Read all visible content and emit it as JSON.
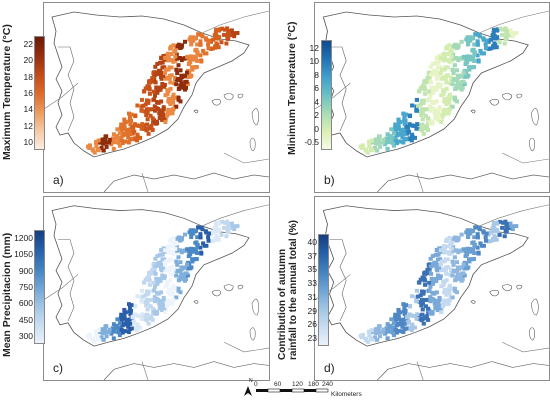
{
  "panels": [
    {
      "letter": "a)",
      "legend_title": [
        "Maximum Temperature (°C)"
      ],
      "ticks": [
        "22",
        "20",
        "18",
        "16",
        "14",
        "12",
        "10"
      ],
      "gradient": [
        "#fbeee3",
        "#f5c9a3",
        "#ec9a5c",
        "#dd6a28",
        "#c24a18",
        "#962d0d",
        "#6b1a06"
      ],
      "point_colors": [
        "#e0722c",
        "#d4601e",
        "#c8531a",
        "#b44414",
        "#ea8a45",
        "#8e2c0c",
        "#e9853e"
      ]
    },
    {
      "letter": "b)",
      "legend_title": [
        "Minimum Temperature (°C)"
      ],
      "ticks": [
        "12",
        "10",
        "8",
        "6",
        "4",
        "2",
        "0",
        "-0.5"
      ],
      "gradient": [
        "#f6fbe4",
        "#d9efb4",
        "#a8dbb6",
        "#6cc0c4",
        "#3f9fcb",
        "#2273b4",
        "#0e4a8c"
      ],
      "point_colors": [
        "#d3ecb0",
        "#a3d9b9",
        "#78c6c2",
        "#4aa7cc",
        "#2b7fbb",
        "#c0e4af",
        "#e6f4c6"
      ]
    },
    {
      "letter": "c)",
      "legend_title": [
        "Mean Precipitacion (mm)"
      ],
      "ticks": [
        "1200",
        "1050",
        "900",
        "750",
        "600",
        "450",
        "300"
      ],
      "gradient": [
        "#eaf2fb",
        "#c8dcf0",
        "#a0c4e4",
        "#6ea4d4",
        "#4282c0",
        "#2660a8",
        "#163e80"
      ],
      "point_colors": [
        "#dbe8f6",
        "#c2d8ef",
        "#a6c7e7",
        "#eef4fb",
        "#7eaed9",
        "#4a88c6",
        "#2a5fa8"
      ]
    },
    {
      "letter": "d)",
      "legend_title": [
        "Contribution of autumn",
        "rainfall to the annual total (%)"
      ],
      "ticks": [
        "40",
        "37",
        "35",
        "33",
        "31",
        "29",
        "26",
        "23"
      ],
      "gradient": [
        "#eaf2fb",
        "#c8dcf0",
        "#a0c4e4",
        "#6ea4d4",
        "#4282c0",
        "#2660a8",
        "#163e80"
      ],
      "point_colors": [
        "#8fb6de",
        "#6a9fd2",
        "#4e87c4",
        "#a9c8e7",
        "#3a70b4",
        "#7aa9d8",
        "#c4daf0"
      ]
    }
  ],
  "scale_bar": {
    "labels": [
      "0",
      "60",
      "120",
      "180",
      "240"
    ],
    "unit": "Kilometers",
    "north_label": "N"
  }
}
